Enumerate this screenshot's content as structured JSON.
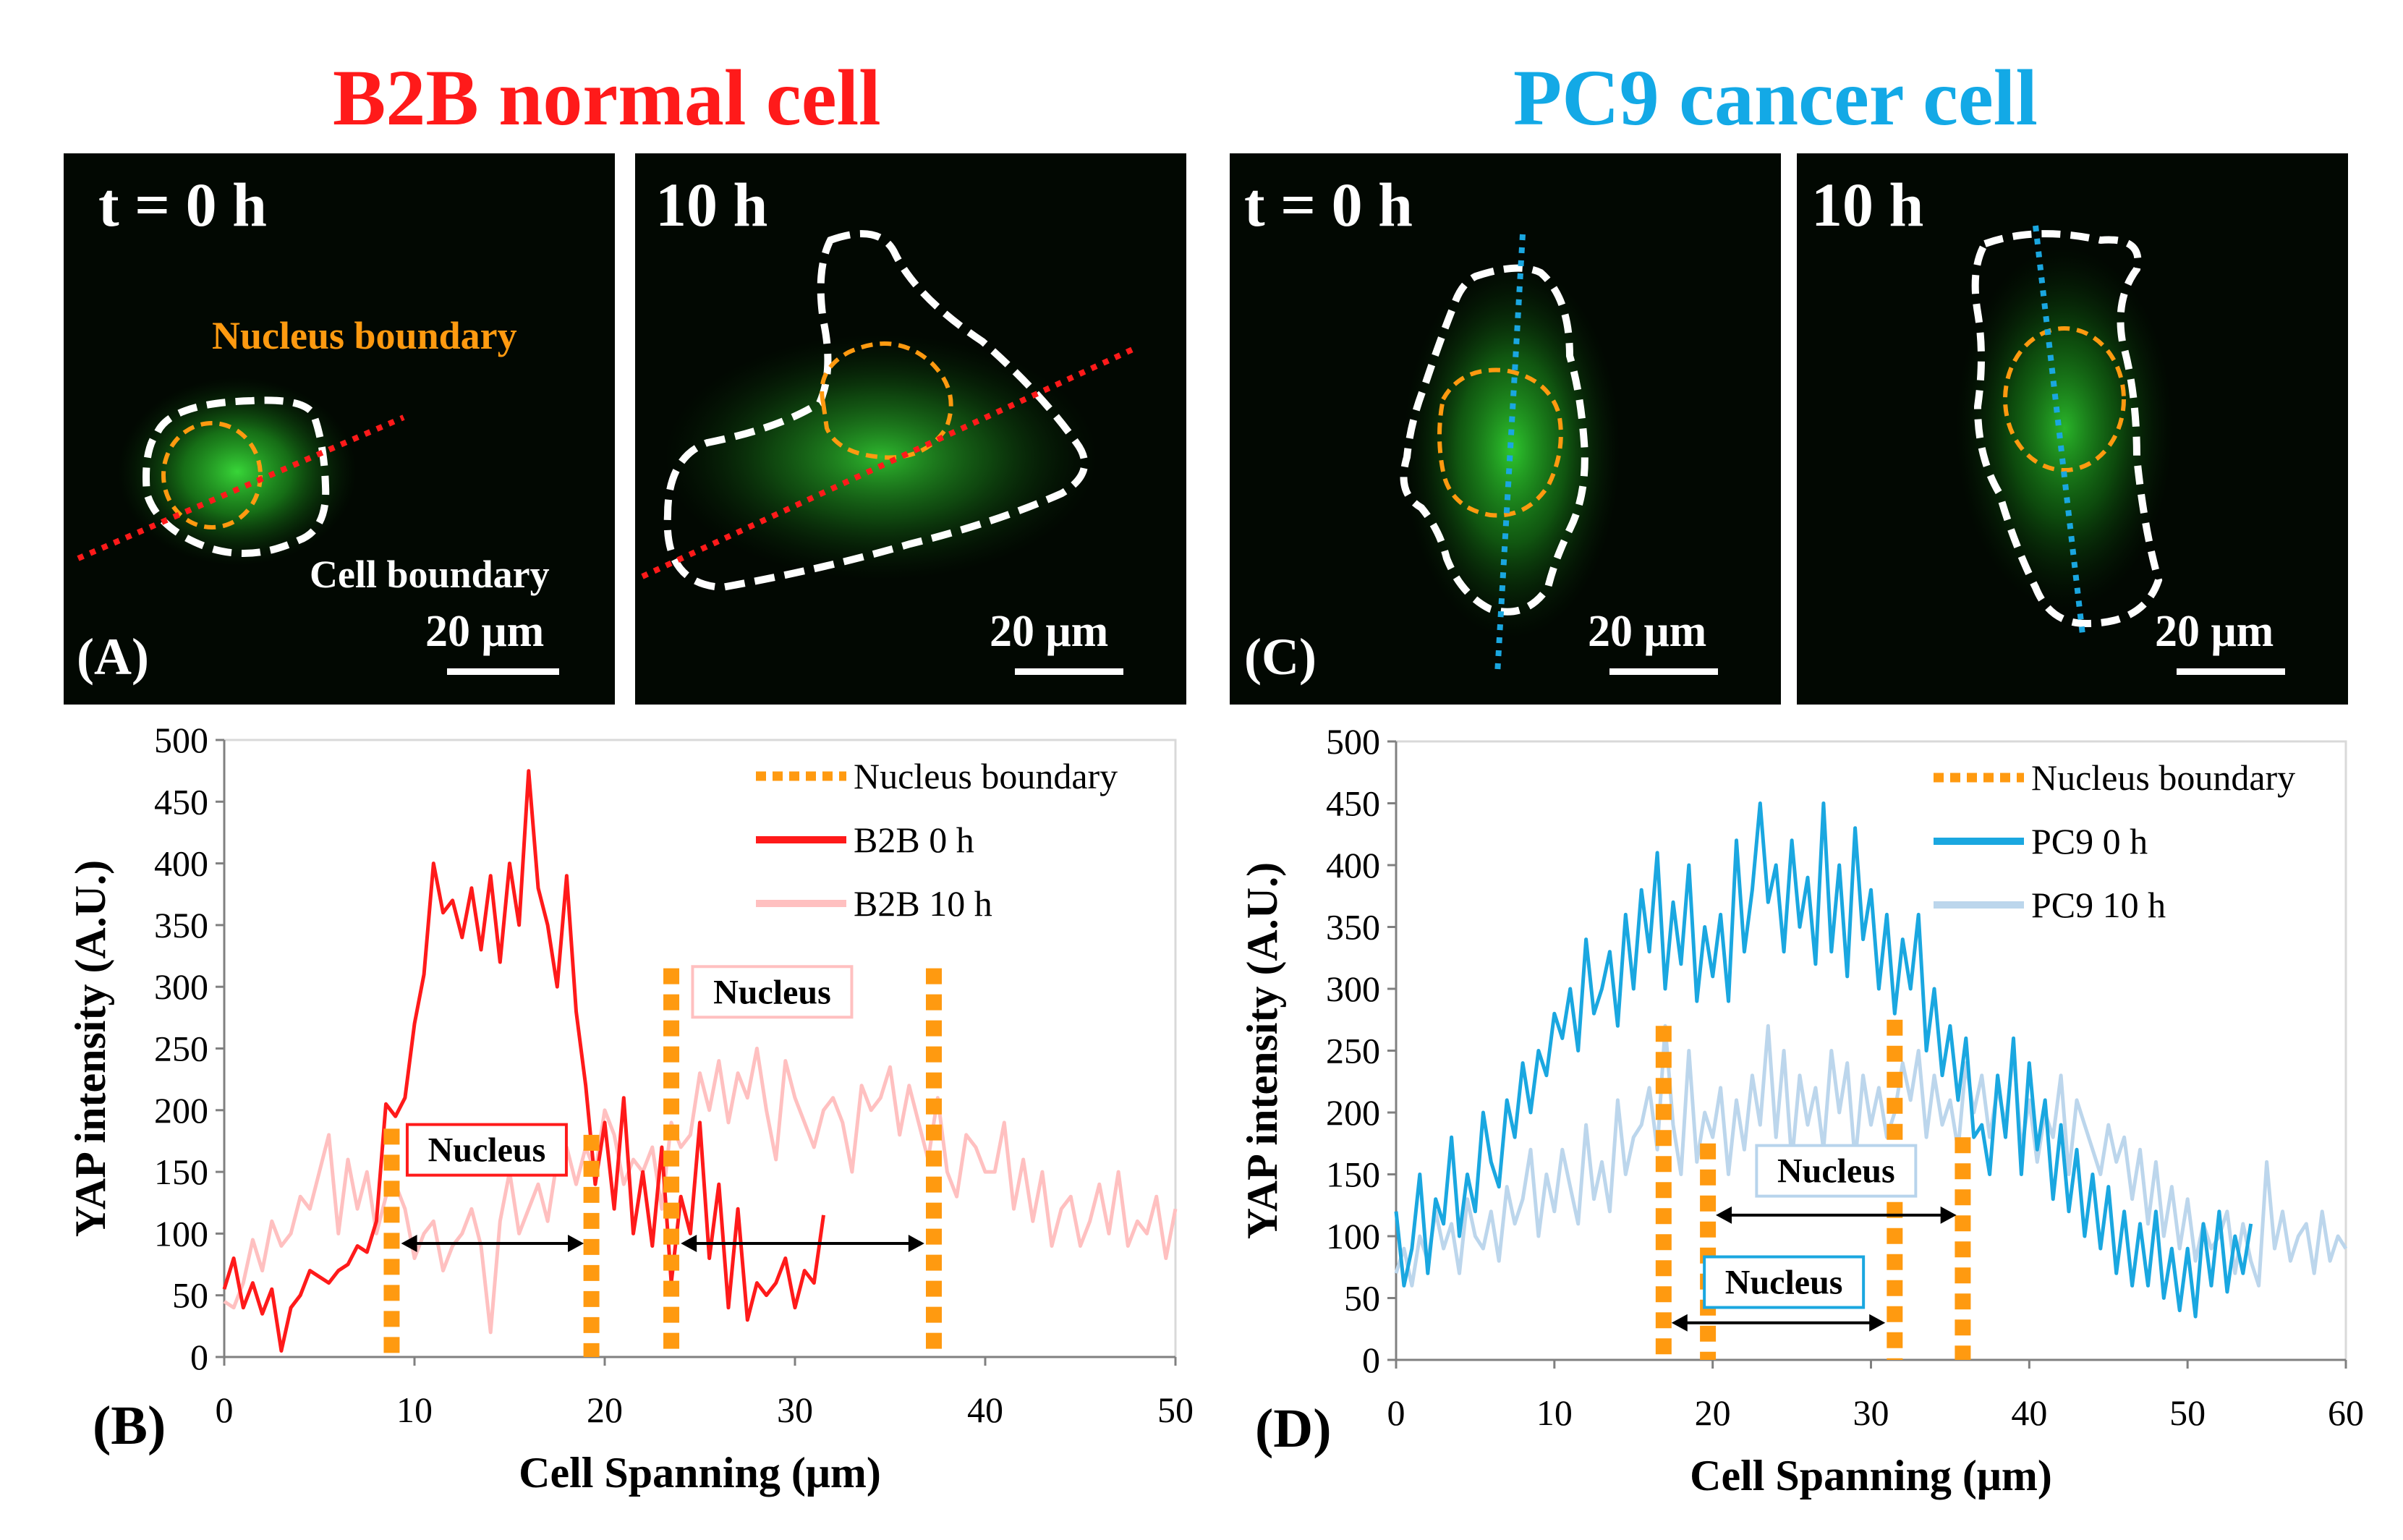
{
  "titles": {
    "left": "B2B normal cell",
    "right": "PC9 cancer  cell",
    "left_color": "#ff1a1a",
    "right_color": "#13a9e6"
  },
  "micrographs": {
    "a0": {
      "time": "t = 0 h",
      "scale": "20 μm",
      "panel": "(A)"
    },
    "a10": {
      "time": "10 h",
      "scale": "20 μm"
    },
    "c0": {
      "time": "t = 0 h",
      "scale": "20 μm",
      "panel": "(C)"
    },
    "c10": {
      "time": "10 h",
      "scale": "20 μm"
    },
    "annotations": {
      "nucleus_boundary": "Nucleus boundary",
      "cell_boundary": "Cell boundary"
    },
    "colors": {
      "nucleus": "#ff9a10",
      "cell": "#ffffff",
      "line_b2b": "#ff1a1a",
      "line_pc9": "#1aa7e0",
      "fluor": "#2fd02f"
    }
  },
  "chart_data": [
    {
      "type": "line",
      "panel": "(B)",
      "title": "",
      "xlabel": "Cell Spanning (μm)",
      "ylabel": "YAP intensity (A.U.)",
      "xlim": [
        0,
        50
      ],
      "ylim": [
        0,
        500
      ],
      "xticks": [
        "0",
        "10",
        "20",
        "30",
        "40",
        "50"
      ],
      "yticks": [
        "0",
        "50",
        "100",
        "150",
        "200",
        "250",
        "300",
        "350",
        "400",
        "450",
        "500"
      ],
      "legend": [
        "Nucleus boundary",
        "B2B 0 h",
        "B2B 10 h"
      ],
      "legend_position": "top-right",
      "nucleus_boundaries": [
        {
          "x": 8.8,
          "top": 185
        },
        {
          "x": 19.3,
          "top": 180
        },
        {
          "x": 23.5,
          "top": 315
        },
        {
          "x": 37.3,
          "top": 315
        }
      ],
      "nucleus_spans": [
        {
          "label": "Nucleus",
          "from": 9.3,
          "to": 18.9,
          "y_arrow": 92,
          "y_label": 162,
          "label_x": 13.8,
          "label_color": "#ff1a1a"
        },
        {
          "label": "Nucleus",
          "from": 24.0,
          "to": 36.8,
          "y_arrow": 92,
          "y_label": 290,
          "label_x": 28.8,
          "label_color": "#ffc0c0"
        }
      ],
      "series": [
        {
          "name": "B2B 0 h",
          "color": "#ff1a1a",
          "x": [
            0,
            0.5,
            1,
            1.5,
            2,
            2.5,
            3,
            3.5,
            4,
            4.5,
            5,
            5.5,
            6,
            6.5,
            7,
            7.5,
            8,
            8.5,
            9,
            9.5,
            10,
            10.5,
            11,
            11.5,
            12,
            12.5,
            13,
            13.5,
            14,
            14.5,
            15,
            15.5,
            16,
            16.5,
            17,
            17.5,
            18,
            18.5,
            19,
            19.5,
            20,
            20.5,
            21,
            21.5,
            22,
            22.5,
            23,
            23.5,
            24,
            24.5,
            25,
            25.5,
            26,
            26.5,
            27,
            27.5,
            28,
            28.5,
            29,
            29.5,
            30,
            30.5,
            31,
            31.5
          ],
          "y": [
            55,
            80,
            40,
            60,
            35,
            55,
            5,
            40,
            50,
            70,
            65,
            60,
            70,
            75,
            90,
            85,
            110,
            205,
            195,
            210,
            270,
            310,
            400,
            360,
            370,
            340,
            380,
            330,
            390,
            320,
            400,
            350,
            475,
            380,
            350,
            300,
            390,
            280,
            220,
            140,
            190,
            120,
            210,
            100,
            150,
            90,
            170,
            60,
            130,
            100,
            190,
            80,
            140,
            40,
            120,
            30,
            60,
            50,
            60,
            80,
            40,
            70,
            60,
            115
          ]
        },
        {
          "name": "B2B 10 h",
          "color": "#ffc0c0",
          "x": [
            0,
            0.5,
            1,
            1.5,
            2,
            2.5,
            3,
            3.5,
            4,
            4.5,
            5,
            5.5,
            6,
            6.5,
            7,
            7.5,
            8,
            8.5,
            9,
            9.5,
            10,
            10.5,
            11,
            11.5,
            12,
            12.5,
            13,
            13.5,
            14,
            14.5,
            15,
            15.5,
            16,
            16.5,
            17,
            17.5,
            18,
            18.5,
            19,
            19.5,
            20,
            20.5,
            21,
            21.5,
            22,
            22.5,
            23,
            23.5,
            24,
            24.5,
            25,
            25.5,
            26,
            26.5,
            27,
            27.5,
            28,
            28.5,
            29,
            29.5,
            30,
            30.5,
            31,
            31.5,
            32,
            32.5,
            33,
            33.5,
            34,
            34.5,
            35,
            35.5,
            36,
            36.5,
            37,
            37.5,
            38,
            38.5,
            39,
            39.5,
            40,
            40.5,
            41,
            41.5,
            42,
            42.5,
            43,
            43.5,
            44,
            44.5,
            45,
            45.5,
            46,
            46.5,
            47,
            47.5,
            48,
            48.5,
            49,
            49.5,
            50
          ],
          "y": [
            45,
            40,
            60,
            95,
            70,
            110,
            90,
            100,
            130,
            120,
            150,
            180,
            100,
            160,
            120,
            150,
            100,
            130,
            140,
            120,
            80,
            100,
            110,
            70,
            90,
            100,
            120,
            90,
            20,
            110,
            150,
            100,
            120,
            140,
            110,
            160,
            170,
            140,
            170,
            150,
            200,
            180,
            140,
            160,
            150,
            170,
            120,
            190,
            170,
            180,
            230,
            200,
            240,
            190,
            230,
            210,
            250,
            200,
            160,
            240,
            210,
            190,
            170,
            200,
            210,
            190,
            150,
            220,
            200,
            210,
            235,
            180,
            220,
            190,
            160,
            210,
            150,
            130,
            180,
            170,
            150,
            150,
            190,
            120,
            160,
            110,
            150,
            90,
            120,
            130,
            90,
            110,
            140,
            100,
            150,
            90,
            110,
            100,
            130,
            80,
            120
          ]
        }
      ]
    },
    {
      "type": "line",
      "panel": "(D)",
      "title": "",
      "xlabel": "Cell Spanning (μm)",
      "ylabel": "YAP intensity (A.U.)",
      "xlim": [
        0,
        60
      ],
      "ylim": [
        0,
        500
      ],
      "xticks": [
        "0",
        "10",
        "20",
        "30",
        "40",
        "50",
        "60"
      ],
      "yticks": [
        "0",
        "50",
        "100",
        "150",
        "200",
        "250",
        "300",
        "350",
        "400",
        "450",
        "500"
      ],
      "legend": [
        "Nucleus boundary",
        "PC9 0 h",
        "PC9 10 h"
      ],
      "legend_position": "top-right",
      "nucleus_boundaries": [
        {
          "x": 16.9,
          "top": 270
        },
        {
          "x": 19.7,
          "top": 175
        },
        {
          "x": 31.5,
          "top": 275
        },
        {
          "x": 35.8,
          "top": 180
        }
      ],
      "nucleus_spans": [
        {
          "label": "Nucleus",
          "from": 20.2,
          "to": 35.4,
          "y_arrow": 117,
          "y_label": 147,
          "label_x": 27.8,
          "label_color": "#b8d4ec"
        },
        {
          "label": "Nucleus",
          "from": 17.4,
          "to": 30.9,
          "y_arrow": 30,
          "y_label": 57,
          "label_x": 24.5,
          "label_color": "#1aa7e0"
        }
      ],
      "series": [
        {
          "name": "PC9 0 h",
          "color": "#1aa7e0",
          "x": [
            0,
            0.5,
            1,
            1.5,
            2,
            2.5,
            3,
            3.5,
            4,
            4.5,
            5,
            5.5,
            6,
            6.5,
            7,
            7.5,
            8,
            8.5,
            9,
            9.5,
            10,
            10.5,
            11,
            11.5,
            12,
            12.5,
            13,
            13.5,
            14,
            14.5,
            15,
            15.5,
            16,
            16.5,
            17,
            17.5,
            18,
            18.5,
            19,
            19.5,
            20,
            20.5,
            21,
            21.5,
            22,
            22.5,
            23,
            23.5,
            24,
            24.5,
            25,
            25.5,
            26,
            26.5,
            27,
            27.5,
            28,
            28.5,
            29,
            29.5,
            30,
            30.5,
            31,
            31.5,
            32,
            32.5,
            33,
            33.5,
            34,
            34.5,
            35,
            35.5,
            36,
            36.5,
            37,
            37.5,
            38,
            38.5,
            39,
            39.5,
            40,
            40.5,
            41,
            41.5,
            42,
            42.5,
            43,
            43.5,
            44,
            44.5,
            45,
            45.5,
            46,
            46.5,
            47,
            47.5,
            48,
            48.5,
            49,
            49.5,
            50,
            50.5,
            51,
            51.5,
            52,
            52.5,
            53,
            53.5,
            54
          ],
          "y": [
            120,
            60,
            90,
            150,
            70,
            130,
            110,
            180,
            100,
            150,
            120,
            200,
            160,
            140,
            210,
            180,
            240,
            200,
            250,
            230,
            280,
            260,
            300,
            250,
            340,
            280,
            300,
            330,
            270,
            360,
            300,
            380,
            330,
            410,
            300,
            370,
            320,
            400,
            290,
            350,
            310,
            360,
            290,
            420,
            330,
            380,
            450,
            370,
            400,
            330,
            420,
            350,
            390,
            320,
            450,
            330,
            400,
            310,
            430,
            340,
            380,
            300,
            360,
            280,
            340,
            300,
            360,
            250,
            300,
            230,
            270,
            210,
            260,
            180,
            190,
            150,
            230,
            180,
            260,
            150,
            240,
            170,
            210,
            130,
            190,
            120,
            170,
            100,
            150,
            90,
            140,
            70,
            120,
            60,
            110,
            60,
            120,
            50,
            90,
            40,
            90,
            35,
            110,
            60,
            120,
            55,
            100,
            70,
            110
          ]
        },
        {
          "name": "PC9 10 h",
          "color": "#bcd6ec",
          "x": [
            0,
            0.5,
            1,
            1.5,
            2,
            2.5,
            3,
            3.5,
            4,
            4.5,
            5,
            5.5,
            6,
            6.5,
            7,
            7.5,
            8,
            8.5,
            9,
            9.5,
            10,
            10.5,
            11,
            11.5,
            12,
            12.5,
            13,
            13.5,
            14,
            14.5,
            15,
            15.5,
            16,
            16.5,
            17,
            17.5,
            18,
            18.5,
            19,
            19.5,
            20,
            20.5,
            21,
            21.5,
            22,
            22.5,
            23,
            23.5,
            24,
            24.5,
            25,
            25.5,
            26,
            26.5,
            27,
            27.5,
            28,
            28.5,
            29,
            29.5,
            30,
            30.5,
            31,
            31.5,
            32,
            32.5,
            33,
            33.5,
            34,
            34.5,
            35,
            35.5,
            36,
            36.5,
            37,
            37.5,
            38,
            38.5,
            39,
            39.5,
            40,
            40.5,
            41,
            41.5,
            42,
            42.5,
            43,
            43.5,
            44,
            44.5,
            45,
            45.5,
            46,
            46.5,
            47,
            47.5,
            48,
            48.5,
            49,
            49.5,
            50,
            50.5,
            51,
            51.5,
            52,
            52.5,
            53,
            53.5,
            54,
            54.5,
            55,
            55.5,
            56,
            56.5,
            57,
            57.5,
            58,
            58.5,
            59,
            59.5,
            60
          ],
          "y": [
            70,
            90,
            60,
            100,
            80,
            120,
            90,
            110,
            70,
            130,
            100,
            90,
            120,
            80,
            140,
            110,
            130,
            170,
            100,
            150,
            120,
            170,
            140,
            110,
            190,
            130,
            160,
            120,
            210,
            150,
            180,
            190,
            220,
            170,
            270,
            190,
            150,
            250,
            160,
            200,
            180,
            220,
            150,
            210,
            170,
            230,
            190,
            270,
            180,
            250,
            160,
            230,
            190,
            220,
            170,
            250,
            200,
            240,
            160,
            230,
            190,
            220,
            180,
            200,
            240,
            210,
            250,
            180,
            230,
            190,
            210,
            170,
            240,
            200,
            230,
            180,
            220,
            190,
            250,
            170,
            210,
            160,
            200,
            180,
            230,
            150,
            210,
            190,
            170,
            150,
            190,
            160,
            180,
            130,
            170,
            110,
            160,
            100,
            140,
            90,
            130,
            80,
            110,
            90,
            100,
            120,
            70,
            110,
            80,
            60,
            160,
            90,
            120,
            80,
            100,
            110,
            70,
            120,
            80,
            100,
            90
          ]
        }
      ]
    }
  ]
}
